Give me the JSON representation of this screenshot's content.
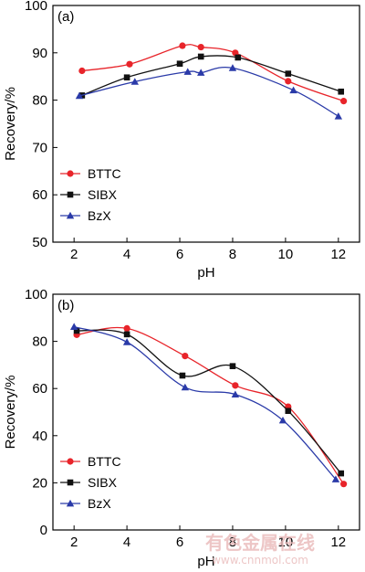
{
  "chart_data": [
    {
      "type": "line",
      "panel_label": "(a)",
      "xlabel": "pH",
      "ylabel": "Recovery/%",
      "xlim": [
        1.2,
        12.8
      ],
      "ylim": [
        50,
        100
      ],
      "xticks": [
        2,
        4,
        6,
        8,
        10,
        12
      ],
      "yticks": [
        50,
        60,
        70,
        80,
        90,
        100
      ],
      "legend": "lower-left",
      "grid": false,
      "series": [
        {
          "name": "BTTC",
          "color": "#e8242a",
          "marker": "circle",
          "x": [
            2.3,
            4.1,
            6.1,
            6.8,
            8.1,
            10.1,
            12.2
          ],
          "y": [
            86.2,
            87.6,
            91.5,
            91.2,
            90.0,
            84.0,
            79.8
          ]
        },
        {
          "name": "SIBX",
          "color": "#111111",
          "marker": "square",
          "x": [
            2.3,
            4.0,
            6.0,
            6.8,
            8.2,
            10.1,
            12.1
          ],
          "y": [
            81.0,
            84.8,
            87.7,
            89.2,
            89.0,
            85.6,
            81.8
          ]
        },
        {
          "name": "BzX",
          "color": "#2a3aa8",
          "marker": "triangle",
          "x": [
            2.2,
            4.3,
            6.3,
            6.8,
            8.0,
            10.3,
            12.0
          ],
          "y": [
            80.9,
            83.9,
            86.0,
            85.8,
            86.8,
            82.1,
            76.6
          ]
        }
      ]
    },
    {
      "type": "line",
      "panel_label": "(b)",
      "xlabel": "pH",
      "ylabel": "Recovery/%",
      "xlim": [
        1.2,
        12.8
      ],
      "ylim": [
        0,
        100
      ],
      "xticks": [
        2,
        4,
        6,
        8,
        10,
        12
      ],
      "yticks": [
        0,
        20,
        40,
        60,
        80,
        100
      ],
      "legend": "lower-left",
      "grid": false,
      "series": [
        {
          "name": "BTTC",
          "color": "#e8242a",
          "marker": "circle",
          "x": [
            2.1,
            4.0,
            6.2,
            8.1,
            10.1,
            12.2
          ],
          "y": [
            82.8,
            85.5,
            73.8,
            61.3,
            52.3,
            19.5
          ]
        },
        {
          "name": "SIBX",
          "color": "#111111",
          "marker": "square",
          "x": [
            2.1,
            4.0,
            6.1,
            8.0,
            10.1,
            12.1
          ],
          "y": [
            84.5,
            83.0,
            65.5,
            69.5,
            50.5,
            24.0
          ]
        },
        {
          "name": "BzX",
          "color": "#2a3aa8",
          "marker": "triangle",
          "x": [
            2.0,
            4.0,
            6.2,
            8.1,
            9.9,
            11.9
          ],
          "y": [
            86.2,
            79.7,
            60.5,
            57.5,
            46.5,
            21.5
          ]
        }
      ]
    }
  ],
  "watermark": {
    "text": "有色金属在线",
    "url": "www.cnnmol.com"
  }
}
